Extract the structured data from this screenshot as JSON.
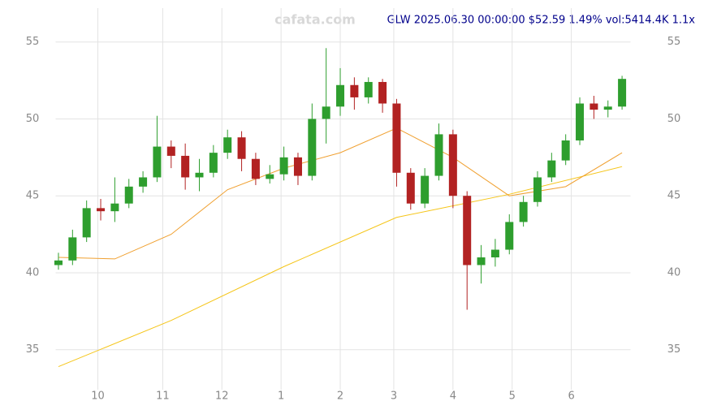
{
  "chart_data": {
    "type": "candlestick",
    "title": "GLW 2025.06.30 00:00:00 $52.59 1.49% vol:5414.4K 1.1x",
    "watermark": "cafata.com",
    "x": [
      0,
      5,
      10,
      15,
      20,
      25,
      30,
      35,
      40,
      45,
      50,
      55,
      60,
      65,
      70,
      75,
      80,
      85,
      90,
      95,
      100,
      105,
      110,
      115,
      120,
      125,
      130,
      135,
      140,
      145,
      150,
      155,
      160,
      165,
      170,
      175,
      180,
      185,
      190,
      195,
      200
    ],
    "open": [
      40.5,
      40.8,
      42.3,
      44.2,
      44.0,
      44.5,
      45.6,
      46.2,
      48.2,
      47.6,
      46.2,
      46.5,
      47.8,
      48.8,
      47.4,
      46.1,
      46.4,
      47.5,
      46.3,
      50.0,
      50.8,
      52.2,
      51.4,
      52.4,
      51.0,
      46.5,
      44.5,
      46.3,
      49.0,
      45.0,
      40.5,
      41.0,
      41.5,
      43.3,
      44.6,
      46.2,
      47.3,
      48.6,
      51.0,
      50.6,
      50.8
    ],
    "high": [
      41.3,
      42.8,
      44.7,
      44.8,
      46.2,
      46.1,
      46.6,
      50.2,
      48.6,
      48.4,
      47.4,
      48.3,
      49.3,
      49.2,
      47.8,
      47.0,
      48.2,
      47.8,
      51.0,
      54.6,
      53.3,
      52.7,
      52.7,
      52.6,
      51.3,
      46.8,
      46.8,
      49.7,
      49.3,
      45.3,
      41.8,
      42.2,
      43.8,
      45.0,
      46.6,
      47.8,
      49.0,
      51.4,
      51.5,
      51.2,
      52.8
    ],
    "low": [
      40.2,
      40.5,
      42.0,
      43.4,
      43.3,
      44.2,
      45.2,
      45.9,
      46.8,
      45.4,
      45.3,
      46.2,
      47.4,
      46.6,
      45.7,
      45.8,
      46.0,
      45.7,
      46.0,
      48.4,
      50.2,
      50.6,
      51.0,
      50.4,
      45.6,
      44.1,
      44.2,
      46.0,
      44.2,
      37.6,
      39.3,
      40.4,
      41.2,
      43.0,
      44.3,
      45.9,
      47.0,
      48.3,
      50.0,
      50.1,
      50.6
    ],
    "close": [
      40.8,
      42.3,
      44.2,
      44.0,
      44.5,
      45.6,
      46.2,
      48.2,
      47.6,
      46.2,
      46.5,
      47.8,
      48.8,
      47.4,
      46.1,
      46.4,
      47.5,
      46.3,
      50.0,
      50.8,
      52.2,
      51.4,
      52.4,
      51.0,
      46.5,
      44.5,
      46.3,
      49.0,
      45.0,
      40.5,
      41.0,
      41.5,
      43.3,
      44.6,
      46.2,
      47.3,
      48.6,
      51.0,
      50.6,
      50.8,
      52.6
    ],
    "up_color": "#2e9e2e",
    "down_color": "#b22222",
    "overlays": [
      {
        "color": "#f5c518",
        "x": [
          0,
          40,
          80,
          120,
          160,
          200
        ],
        "values": [
          33.9,
          36.9,
          40.4,
          43.6,
          45.1,
          46.9
        ]
      },
      {
        "color": "#f0a030",
        "x": [
          0,
          20,
          40,
          60,
          80,
          100,
          120,
          140,
          160,
          180,
          200
        ],
        "values": [
          41.0,
          40.9,
          42.5,
          45.4,
          46.8,
          47.8,
          49.4,
          47.5,
          45.0,
          45.6,
          47.8
        ]
      }
    ],
    "xlim": [
      -1,
      203
    ],
    "xticks": [
      {
        "value": 14,
        "label": "10"
      },
      {
        "value": 37,
        "label": "11"
      },
      {
        "value": 58,
        "label": "12"
      },
      {
        "value": 79,
        "label": "1"
      },
      {
        "value": 100,
        "label": "2"
      },
      {
        "value": 119,
        "label": "3"
      },
      {
        "value": 140,
        "label": "4"
      },
      {
        "value": 161,
        "label": "5"
      },
      {
        "value": 182,
        "label": "6"
      }
    ],
    "ylim": [
      32.4,
      57.2
    ],
    "yticks": [
      35,
      40,
      45,
      50,
      55
    ],
    "grid": true
  }
}
